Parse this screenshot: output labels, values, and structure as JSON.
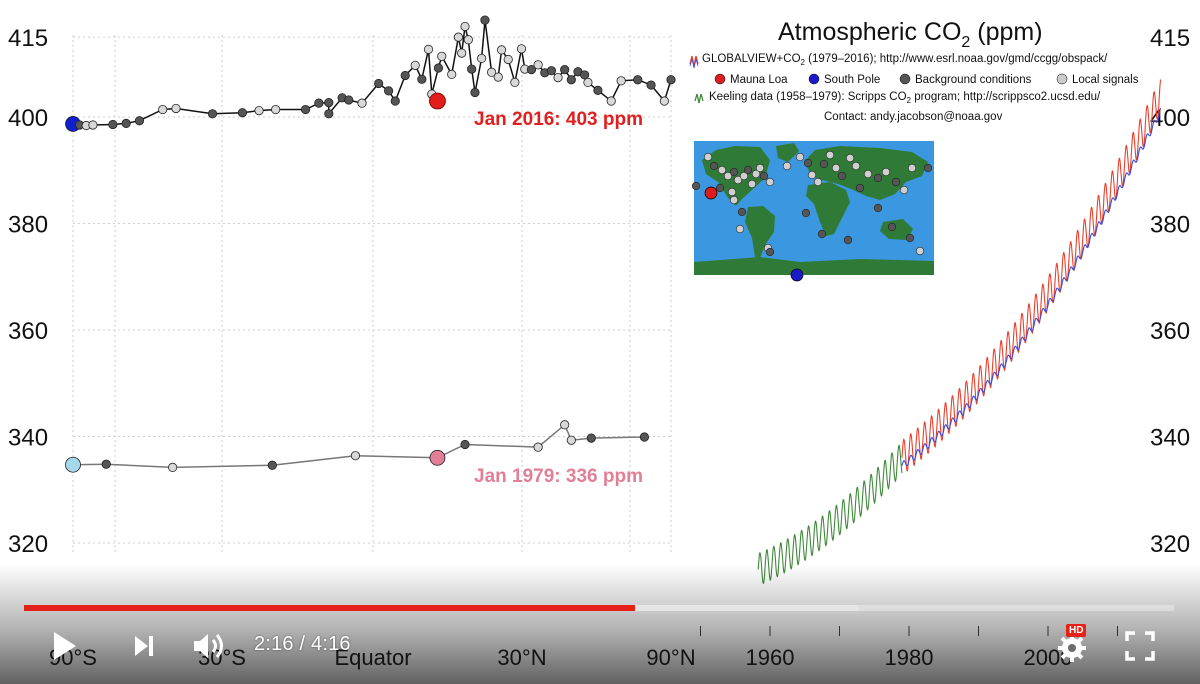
{
  "chart_data": [
    {
      "type": "scatter",
      "title": "",
      "xlabel": "",
      "ylabel": "",
      "x_ticks": [
        "90°S",
        "30°S",
        "Equator",
        "30°N",
        "90°N"
      ],
      "y_ticks": [
        "320",
        "340",
        "360",
        "380",
        "400",
        "415"
      ],
      "ylim": [
        318,
        418
      ],
      "grid": true,
      "series": [
        {
          "name": "Jan 2016",
          "color": "#000000",
          "points": [
            {
              "x": -90,
              "y": 398.7,
              "kind": "south-pole"
            },
            {
              "x": -88,
              "y": 398.5,
              "kind": "background"
            },
            {
              "x": -86,
              "y": 398.4,
              "kind": "local"
            },
            {
              "x": -84,
              "y": 398.5,
              "kind": "local"
            },
            {
              "x": -78,
              "y": 398.6,
              "kind": "background"
            },
            {
              "x": -74,
              "y": 398.8,
              "kind": "background"
            },
            {
              "x": -70,
              "y": 399.3,
              "kind": "background"
            },
            {
              "x": -63,
              "y": 401.4,
              "kind": "local"
            },
            {
              "x": -59,
              "y": 401.6,
              "kind": "local"
            },
            {
              "x": -48,
              "y": 400.6,
              "kind": "background"
            },
            {
              "x": -39,
              "y": 400.8,
              "kind": "background"
            },
            {
              "x": -34,
              "y": 401.2,
              "kind": "local"
            },
            {
              "x": -29,
              "y": 401.4,
              "kind": "local"
            },
            {
              "x": -20,
              "y": 401.4,
              "kind": "background"
            },
            {
              "x": -16,
              "y": 402.6,
              "kind": "background"
            },
            {
              "x": -13,
              "y": 402.7,
              "kind": "background"
            },
            {
              "x": -13,
              "y": 400.6,
              "kind": "background"
            },
            {
              "x": -9,
              "y": 403.6,
              "kind": "background"
            },
            {
              "x": -7,
              "y": 403.2,
              "kind": "background"
            },
            {
              "x": -3,
              "y": 402.6,
              "kind": "local"
            },
            {
              "x": 2,
              "y": 406.3,
              "kind": "background"
            },
            {
              "x": 5,
              "y": 404.9,
              "kind": "background"
            },
            {
              "x": 7,
              "y": 403.0,
              "kind": "background"
            },
            {
              "x": 10,
              "y": 407.8,
              "kind": "background"
            },
            {
              "x": 13,
              "y": 409.7,
              "kind": "local"
            },
            {
              "x": 15,
              "y": 407.1,
              "kind": "background"
            },
            {
              "x": 17,
              "y": 412.7,
              "kind": "local"
            },
            {
              "x": 18,
              "y": 404.3,
              "kind": "local"
            },
            {
              "x": 20,
              "y": 409.2,
              "kind": "background"
            },
            {
              "x": 21,
              "y": 411.4,
              "kind": "local"
            },
            {
              "x": 24,
              "y": 408.0,
              "kind": "local"
            },
            {
              "x": 26,
              "y": 415.0,
              "kind": "local"
            },
            {
              "x": 27,
              "y": 412.0,
              "kind": "local"
            },
            {
              "x": 28,
              "y": 417.0,
              "kind": "local"
            },
            {
              "x": 29,
              "y": 414.5,
              "kind": "local"
            },
            {
              "x": 30,
              "y": 409.0,
              "kind": "background"
            },
            {
              "x": 31,
              "y": 404.6,
              "kind": "background"
            },
            {
              "x": 33,
              "y": 411.0,
              "kind": "local"
            },
            {
              "x": 34,
              "y": 418.2,
              "kind": "background"
            },
            {
              "x": 36,
              "y": 408.4,
              "kind": "local"
            },
            {
              "x": 38,
              "y": 407.5,
              "kind": "local"
            },
            {
              "x": 39,
              "y": 412.6,
              "kind": "local"
            },
            {
              "x": 41,
              "y": 410.8,
              "kind": "local"
            },
            {
              "x": 43,
              "y": 406.5,
              "kind": "local"
            },
            {
              "x": 45,
              "y": 412.8,
              "kind": "local"
            },
            {
              "x": 46,
              "y": 409.0,
              "kind": "local"
            },
            {
              "x": 48,
              "y": 408.9,
              "kind": "background"
            },
            {
              "x": 50,
              "y": 409.8,
              "kind": "local"
            },
            {
              "x": 52,
              "y": 408.3,
              "kind": "background"
            },
            {
              "x": 54,
              "y": 408.7,
              "kind": "background"
            },
            {
              "x": 56,
              "y": 407.4,
              "kind": "local"
            },
            {
              "x": 58,
              "y": 408.9,
              "kind": "background"
            },
            {
              "x": 60,
              "y": 407.0,
              "kind": "background"
            },
            {
              "x": 62,
              "y": 408.5,
              "kind": "background"
            },
            {
              "x": 64,
              "y": 407.9,
              "kind": "background"
            },
            {
              "x": 65,
              "y": 406.5,
              "kind": "local"
            },
            {
              "x": 68,
              "y": 405.0,
              "kind": "background"
            },
            {
              "x": 72,
              "y": 403.0,
              "kind": "local"
            },
            {
              "x": 75,
              "y": 406.8,
              "kind": "local"
            },
            {
              "x": 80,
              "y": 407.0,
              "kind": "background"
            },
            {
              "x": 84,
              "y": 406.0,
              "kind": "background"
            },
            {
              "x": 88,
              "y": 403.0,
              "kind": "local"
            },
            {
              "x": 90,
              "y": 407.0,
              "kind": "background"
            }
          ]
        },
        {
          "name": "Jan 1979",
          "color": "#666666",
          "points": [
            {
              "x": -90,
              "y": 334.7,
              "kind": "south-pole"
            },
            {
              "x": -80,
              "y": 334.8,
              "kind": "background"
            },
            {
              "x": -60,
              "y": 334.2,
              "kind": "local"
            },
            {
              "x": -30,
              "y": 334.6,
              "kind": "background"
            },
            {
              "x": -5,
              "y": 336.4,
              "kind": "local"
            },
            {
              "x": 19.7,
              "y": 336.0,
              "kind": "mauna-loa"
            },
            {
              "x": 28,
              "y": 338.5,
              "kind": "background"
            },
            {
              "x": 50,
              "y": 338.0,
              "kind": "local"
            },
            {
              "x": 58,
              "y": 342.2,
              "kind": "local"
            },
            {
              "x": 60,
              "y": 339.3,
              "kind": "local"
            },
            {
              "x": 66,
              "y": 339.7,
              "kind": "background"
            },
            {
              "x": 82,
              "y": 339.9,
              "kind": "background"
            }
          ]
        }
      ],
      "highlight_2016": {
        "x": 19.7,
        "y": 403.0
      },
      "annotations": [
        "Jan 2016: 403 ppm",
        "Jan 1979: 336 ppm"
      ]
    },
    {
      "type": "line",
      "title": "Atmospheric CO2 (ppm)",
      "title_base": "Atmospheric CO",
      "title_sub": "2",
      "title_unit": " (ppm)",
      "x_ticks": [
        "1960",
        "1980",
        "2000"
      ],
      "y_ticks": [
        "320",
        "340",
        "360",
        "380",
        "400",
        "415"
      ],
      "xlim": [
        1955,
        2017
      ],
      "ylim": [
        318,
        418
      ],
      "grid": false,
      "series": [
        {
          "name": "Mauna Loa",
          "color": "#e8412d",
          "x_start": 1979,
          "x_end": 2016.2,
          "y_start": 336.0,
          "y_end": 404.0,
          "amplitude": 3.2
        },
        {
          "name": "South Pole",
          "color": "#3c4bd6",
          "x_start": 1979,
          "x_end": 2016.2,
          "y_start": 334.5,
          "y_end": 401.0,
          "amplitude": 0.7
        },
        {
          "name": "Keeling data",
          "color": "#3f8a3a",
          "x_start": 1958.3,
          "x_end": 1979,
          "y_start": 315.0,
          "y_end": 336.0,
          "amplitude": 3.0
        }
      ]
    }
  ],
  "legend": {
    "globalview_label": "GLOBALVIEW+CO",
    "globalview_sub": "2",
    "globalview_rest": " (1979–2016); http://www.esrl.noaa.gov/gmd/ccgg/obspack/",
    "mauna_loa": "Mauna Loa",
    "south_pole": "South Pole",
    "background": "Background conditions",
    "local": "Local signals",
    "keeling": "Keeling data (1958–1979): Scripps CO",
    "keeling_sub": "2",
    "keeling_rest": " program; http://scrippsco2.ucsd.edu/",
    "contact": "Contact: andy.jacobson@noaa.gov",
    "colors": {
      "mauna_loa": "#e01b1b",
      "south_pole": "#1a1ac8",
      "background": "#555555",
      "local": "#cccccc"
    }
  },
  "map": {
    "ocean_color": "#3b98e0",
    "land_color": "#2f7a36"
  },
  "player": {
    "current_time": "2:16",
    "separator": " / ",
    "duration": "4:16",
    "played_fraction": 0.531,
    "buffered_fraction": 0.726,
    "hd_label": "HD",
    "progress_color": "#e62117"
  }
}
